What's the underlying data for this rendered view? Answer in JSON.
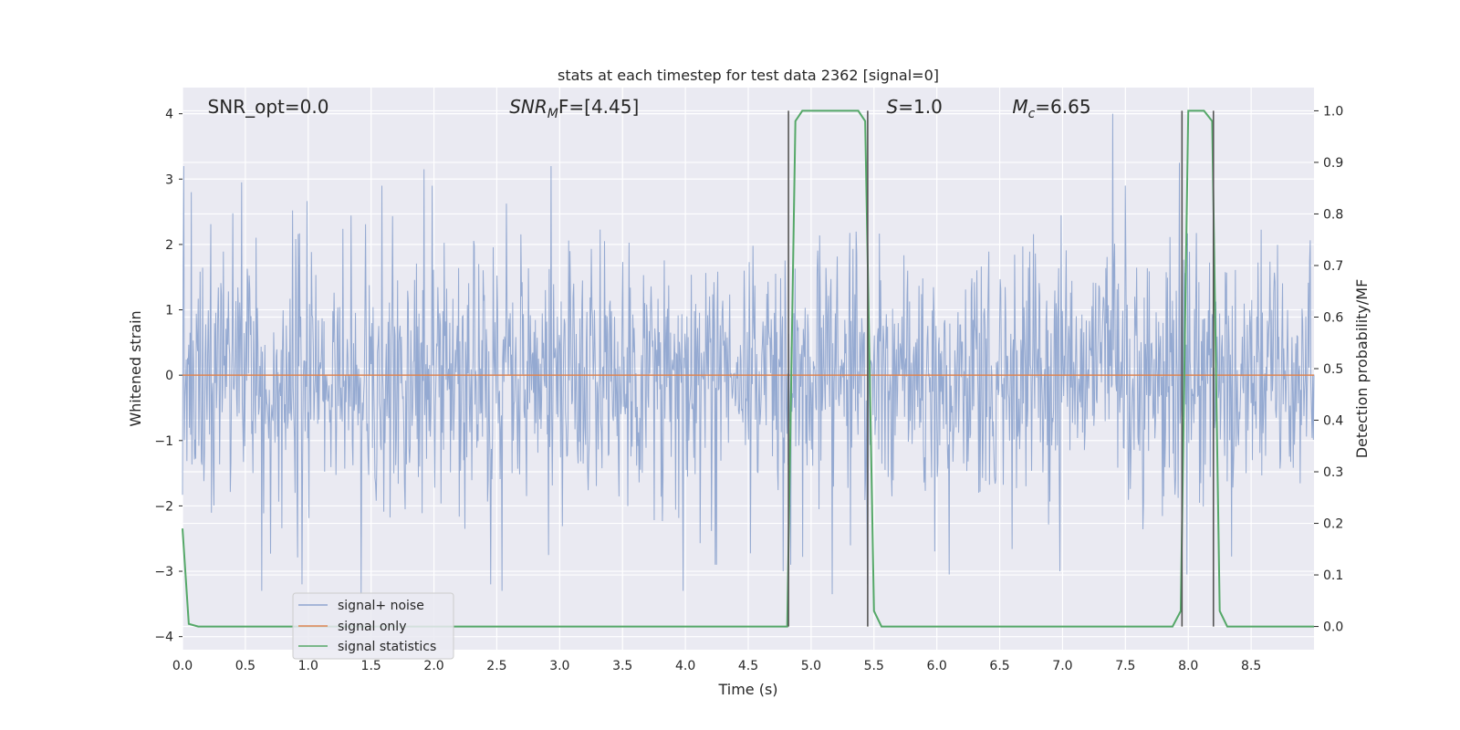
{
  "chart_data": {
    "type": "line",
    "title": "stats at each timestep for test data 2362 [signal=0]",
    "xlabel": "Time (s)",
    "ylabel_left": "Whitened strain",
    "ylabel_right": "Detection probability/MF",
    "xlim": [
      0.0,
      9.0
    ],
    "ylim_left": [
      -4.2,
      4.4
    ],
    "ylim_right": [
      -0.045,
      1.045
    ],
    "x_ticks": [
      "0.0",
      "0.5",
      "1.0",
      "1.5",
      "2.0",
      "2.5",
      "3.0",
      "3.5",
      "4.0",
      "4.5",
      "5.0",
      "5.5",
      "6.0",
      "6.5",
      "7.0",
      "7.5",
      "8.0",
      "8.5"
    ],
    "x_tick_values": [
      0.0,
      0.5,
      1.0,
      1.5,
      2.0,
      2.5,
      3.0,
      3.5,
      4.0,
      4.5,
      5.0,
      5.5,
      6.0,
      6.5,
      7.0,
      7.5,
      8.0,
      8.5
    ],
    "y_ticks_left": [
      "−4",
      "−3",
      "−2",
      "−1",
      "0",
      "1",
      "2",
      "3",
      "4"
    ],
    "y_tick_values_left": [
      -4,
      -3,
      -2,
      -1,
      0,
      1,
      2,
      3,
      4
    ],
    "y_ticks_right": [
      "0.0",
      "0.1",
      "0.2",
      "0.3",
      "0.4",
      "0.5",
      "0.6",
      "0.7",
      "0.8",
      "0.9",
      "1.0"
    ],
    "y_tick_values_right": [
      0.0,
      0.1,
      0.2,
      0.3,
      0.4,
      0.5,
      0.6,
      0.7,
      0.8,
      0.9,
      1.0
    ],
    "grid": true,
    "legend_placement": "lower-left",
    "annotations": [
      {
        "id": "snr-opt",
        "text": "SNR_opt=0.0",
        "x": 0.2
      },
      {
        "id": "snr-mf",
        "base": "SNR",
        "sub": "M",
        "rest": "F=[4.45]",
        "x": 2.6
      },
      {
        "id": "s-stat",
        "base": "S",
        "rest": "=1.0",
        "x": 5.6
      },
      {
        "id": "mc",
        "base": "M",
        "sub": "c",
        "rest": "=6.65",
        "x": 6.6
      }
    ],
    "vertical_lines": [
      4.82,
      5.45,
      7.95,
      8.2
    ],
    "series": [
      {
        "name": "signal+ noise",
        "color": "#8fa5cf",
        "axis": "left",
        "kind": "noise",
        "noise_std": 0.95,
        "num_points": 1800,
        "spikes": [
          {
            "x": 0.01,
            "y": 3.2
          },
          {
            "x": 0.07,
            "y": 2.8
          },
          {
            "x": 0.47,
            "y": 2.95
          },
          {
            "x": 0.63,
            "y": -3.3
          },
          {
            "x": 0.95,
            "y": -3.2
          },
          {
            "x": 1.42,
            "y": -3.35
          },
          {
            "x": 1.92,
            "y": 3.15
          },
          {
            "x": 2.45,
            "y": -3.2
          },
          {
            "x": 2.54,
            "y": -3.3
          },
          {
            "x": 2.93,
            "y": 3.2
          },
          {
            "x": 3.98,
            "y": -3.3
          },
          {
            "x": 4.78,
            "y": -3.0
          },
          {
            "x": 4.84,
            "y": -2.9
          },
          {
            "x": 5.17,
            "y": -3.35
          },
          {
            "x": 5.45,
            "y": -3.2
          },
          {
            "x": 6.1,
            "y": -3.05
          },
          {
            "x": 6.98,
            "y": -3.0
          },
          {
            "x": 7.4,
            "y": 4.0
          },
          {
            "x": 7.93,
            "y": 3.25
          },
          {
            "x": 7.99,
            "y": -3.05
          },
          {
            "x": 8.2,
            "y": -2.55
          }
        ]
      },
      {
        "name": "signal only",
        "color": "#dd8452",
        "axis": "left",
        "x": [
          0.0,
          9.0
        ],
        "y": [
          0.0,
          0.0
        ]
      },
      {
        "name": "signal statistics",
        "color": "#55a868",
        "axis": "right",
        "x": [
          0.0,
          0.05,
          0.125,
          4.81,
          4.875,
          4.93,
          5.375,
          5.43,
          5.5,
          5.56,
          7.875,
          7.94,
          8.0,
          8.125,
          8.19,
          8.25,
          8.31,
          9.0
        ],
        "y": [
          0.19,
          0.005,
          0.0,
          0.0,
          0.98,
          1.0,
          1.0,
          0.98,
          0.03,
          0.0,
          0.0,
          0.03,
          1.0,
          1.0,
          0.98,
          0.03,
          0.0,
          0.0
        ]
      }
    ]
  }
}
